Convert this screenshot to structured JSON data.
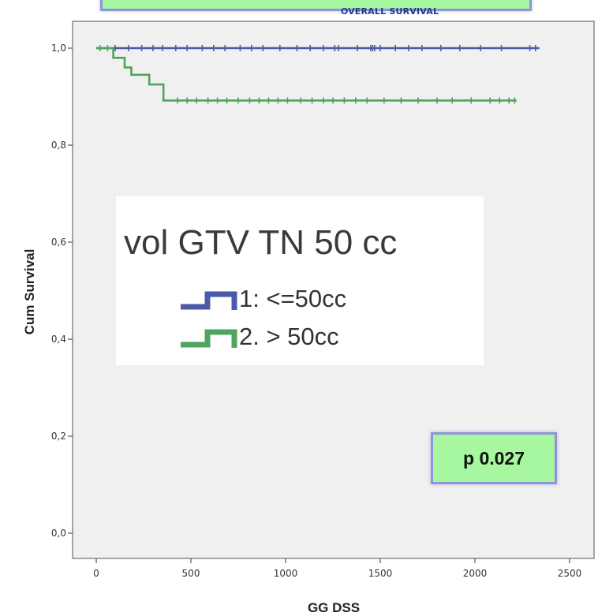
{
  "chart_data": {
    "type": "line",
    "title": "OVERALL SURVIVAL",
    "xlabel": "GG DSS",
    "ylabel": "Cum Survival",
    "xlim": [
      0,
      2500
    ],
    "ylim": [
      0,
      1.0
    ],
    "x_ticks": [
      "0",
      "500",
      "1000",
      "1500",
      "2000",
      "2500"
    ],
    "y_ticks": [
      "0,0",
      "0,2",
      "0,4",
      "0,6",
      "0,8",
      "1,0"
    ],
    "grid": false,
    "legend_title": "vol GTV TN 50 cc",
    "series": [
      {
        "name": "1: <=50cc",
        "color": "#4b5aa8",
        "steps": [
          [
            0,
            1.0
          ],
          [
            2340,
            1.0
          ]
        ],
        "censored": [
          20,
          100,
          170,
          240,
          300,
          350,
          420,
          480,
          560,
          620,
          680,
          760,
          820,
          880,
          970,
          1060,
          1130,
          1200,
          1260,
          1280,
          1380,
          1450,
          1460,
          1470,
          1500,
          1580,
          1650,
          1720,
          1820,
          1920,
          2030,
          2140,
          2290,
          2320
        ]
      },
      {
        "name": "2. > 50cc",
        "color": "#4fa45f",
        "steps": [
          [
            0,
            1.0
          ],
          [
            90,
            1.0
          ],
          [
            90,
            0.98
          ],
          [
            150,
            0.98
          ],
          [
            150,
            0.96
          ],
          [
            185,
            0.96
          ],
          [
            185,
            0.945
          ],
          [
            280,
            0.945
          ],
          [
            280,
            0.925
          ],
          [
            355,
            0.925
          ],
          [
            355,
            0.892
          ],
          [
            2220,
            0.892
          ]
        ],
        "censored": [
          20,
          60,
          430,
          480,
          530,
          590,
          640,
          690,
          750,
          810,
          860,
          910,
          960,
          1010,
          1080,
          1140,
          1200,
          1250,
          1310,
          1370,
          1430,
          1520,
          1610,
          1700,
          1800,
          1880,
          1980,
          2080,
          2130,
          2180,
          2210
        ]
      }
    ],
    "annotation": "p 0.027"
  }
}
